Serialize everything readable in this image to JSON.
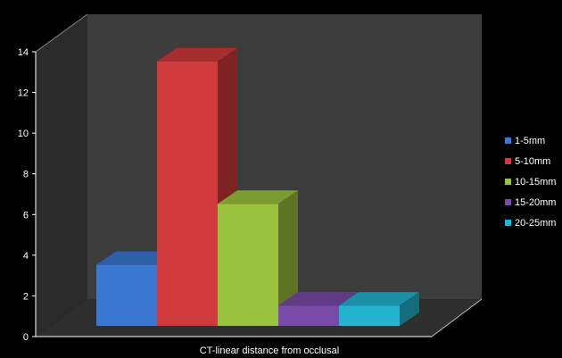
{
  "chart_data": {
    "type": "bar",
    "style": "3d-clustered",
    "xlabel": "CT-linear distance from occlusal",
    "ylabel": "",
    "ylim": [
      0,
      14
    ],
    "yticks": [
      "0",
      "2",
      "4",
      "6",
      "8",
      "10",
      "12",
      "14"
    ],
    "grid": false,
    "legend_position": "right",
    "series": [
      {
        "name": "1-5mm",
        "value": 3,
        "color": "#3a78d4"
      },
      {
        "name": "5-10mm",
        "value": 13,
        "color": "#d03a3a"
      },
      {
        "name": "10-15mm",
        "value": 6,
        "color": "#9bc23e"
      },
      {
        "name": "15-20mm",
        "value": 1,
        "color": "#7a4aa8"
      },
      {
        "name": "20-25mm",
        "value": 1,
        "color": "#23b4d0"
      }
    ],
    "background": "#000000",
    "wall_color": "#3c3c3c",
    "floor_color": "#2e2e2e"
  }
}
